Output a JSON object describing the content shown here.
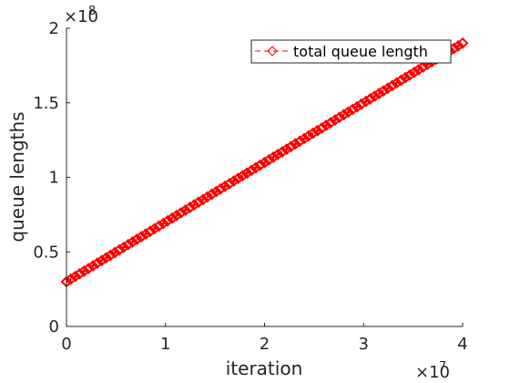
{
  "chart_data": {
    "type": "line",
    "title": "",
    "xlabel": "iteration",
    "ylabel": "queue lengths",
    "xlim": [
      0,
      40000000
    ],
    "ylim": [
      0,
      200000000
    ],
    "x_ticks": [
      0,
      10000000,
      20000000,
      30000000,
      40000000
    ],
    "x_tick_labels": [
      "0",
      "1",
      "2",
      "3",
      "4"
    ],
    "y_ticks": [
      0,
      50000000,
      100000000,
      150000000,
      200000000
    ],
    "y_tick_labels": [
      "0",
      "0.5",
      "1",
      "1.5",
      "2"
    ],
    "x_multiplier": {
      "base": "×10",
      "exponent": "7"
    },
    "y_multiplier": {
      "base": "×10",
      "exponent": "8"
    },
    "grid": false,
    "legend_position": "top-right",
    "series": [
      {
        "name": "total queue length",
        "color": "#ff0000",
        "line_style": "dashed",
        "marker": "diamond",
        "x": [
          0,
          40000000
        ],
        "y": [
          30000000,
          190000000
        ]
      }
    ]
  }
}
